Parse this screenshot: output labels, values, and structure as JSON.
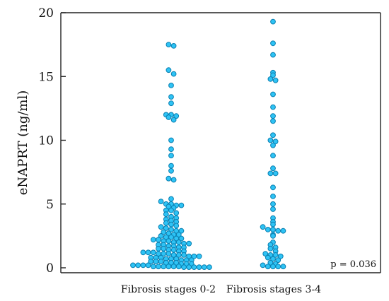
{
  "chart_data": {
    "type": "scatter",
    "subtype": "dot-plot",
    "title": "",
    "xlabel": "",
    "ylabel": "eNAPRT (ng/ml)",
    "ylim": [
      0,
      20
    ],
    "yticks": [
      "0",
      "5",
      "10",
      "15",
      "20"
    ],
    "categories": [
      "Fibrosis stages 0-2",
      "Fibrosis stages 3-4"
    ],
    "annotation": "p = 0.036",
    "grid": false,
    "series": [
      {
        "values": [
          17.5,
          17.4,
          15.5,
          15.2,
          14.3,
          13.4,
          12.9,
          12.0,
          12.0,
          11.9,
          11.8,
          11.6,
          10.0,
          9.3,
          8.8,
          8.0,
          7.6,
          7.0,
          6.9,
          5.4,
          5.2,
          5.0,
          5.0,
          4.9,
          4.9,
          4.8,
          4.7,
          4.5,
          4.5,
          4.3,
          4.2,
          4.0,
          3.9,
          3.8,
          3.7,
          3.6,
          3.5,
          3.4,
          3.3,
          3.2,
          3.1,
          3.0,
          2.9,
          2.9,
          2.8,
          2.7,
          2.6,
          2.6,
          2.5,
          2.4,
          2.4,
          2.3,
          2.3,
          2.2,
          2.2,
          2.1,
          2.1,
          2.0,
          2.0,
          1.9,
          1.9,
          1.8,
          1.8,
          1.7,
          1.7,
          1.6,
          1.6,
          1.5,
          1.5,
          1.4,
          1.4,
          1.3,
          1.3,
          1.2,
          1.2,
          1.2,
          1.1,
          1.1,
          1.1,
          1.0,
          1.0,
          1.0,
          0.9,
          0.9,
          0.9,
          0.8,
          0.8,
          0.8,
          0.7,
          0.7,
          0.7,
          0.6,
          0.6,
          0.6,
          0.5,
          0.5,
          0.5,
          0.4,
          0.4,
          0.4,
          0.3,
          0.3,
          0.3,
          0.2,
          0.2,
          0.2,
          0.2,
          0.1,
          0.1,
          0.1,
          0.1,
          0.1,
          0.1,
          0.05,
          0.05,
          0.05,
          0.05,
          0.05,
          0.05
        ]
      },
      {
        "values": [
          19.3,
          17.6,
          16.7,
          15.3,
          15.1,
          14.8,
          14.7,
          13.6,
          12.6,
          11.9,
          11.5,
          10.4,
          10.0,
          9.9,
          9.6,
          8.8,
          7.8,
          7.4,
          7.4,
          6.3,
          5.6,
          5.0,
          4.6,
          3.9,
          3.6,
          3.4,
          3.2,
          3.0,
          3.0,
          2.9,
          2.9,
          2.6,
          2.5,
          2.0,
          1.8,
          1.6,
          1.5,
          1.3,
          1.1,
          1.0,
          1.0,
          0.9,
          0.8,
          0.7,
          0.6,
          0.4,
          0.3,
          0.2,
          0.1,
          0.1,
          0.1,
          0.1
        ]
      }
    ]
  }
}
